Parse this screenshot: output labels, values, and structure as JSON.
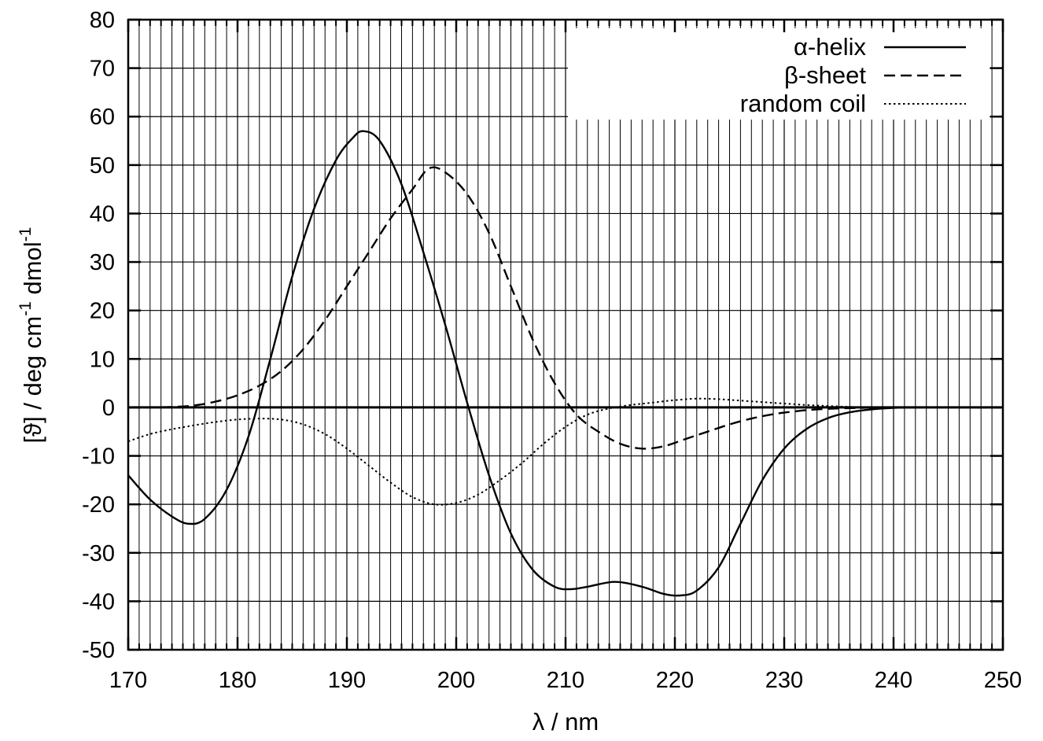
{
  "chart_data": {
    "type": "line",
    "xlabel": "λ / nm",
    "ylabel": "[ϑ] / deg cm",
    "ylabel_sup1": "-1",
    "ylabel_mid": " dmol",
    "ylabel_sup2": "-1",
    "xlim": [
      170,
      250
    ],
    "ylim": [
      -50,
      80
    ],
    "xticks": [
      170,
      180,
      190,
      200,
      210,
      220,
      230,
      240,
      250
    ],
    "yticks": [
      -50,
      -40,
      -30,
      -20,
      -10,
      0,
      10,
      20,
      30,
      40,
      50,
      60,
      70,
      80
    ],
    "grid": true,
    "minor_grid_x_step": 1,
    "legend_position": "top-right",
    "colors": {
      "line": "#000000",
      "grid": "#000000",
      "background": "#ffffff"
    },
    "series": [
      {
        "name": "α-helix",
        "style": "solid",
        "x": [
          170,
          172,
          174,
          175.5,
          177,
          179,
          181,
          183,
          185,
          187,
          189,
          190.5,
          191.5,
          193,
          195,
          197,
          199,
          201,
          203,
          205,
          207,
          209,
          210.5,
          212,
          214.5,
          217,
          219,
          220.5,
          222,
          224,
          226,
          228,
          230,
          232,
          234,
          236,
          238,
          240,
          242,
          250
        ],
        "y": [
          -14,
          -19,
          -22.5,
          -24,
          -23,
          -17,
          -6,
          10,
          27,
          41,
          51,
          55.5,
          57,
          55,
          46,
          32,
          17,
          1,
          -14,
          -26,
          -33.5,
          -37,
          -37.5,
          -37,
          -36,
          -37,
          -38.5,
          -38.8,
          -37.8,
          -33,
          -24,
          -15,
          -8.5,
          -4.5,
          -2.2,
          -1,
          -0.4,
          -0.1,
          0,
          0
        ]
      },
      {
        "name": "β-sheet",
        "style": "dashed",
        "x": [
          170,
          172,
          174,
          176,
          178,
          180,
          182,
          184,
          186,
          188,
          190,
          192,
          194,
          196,
          197.5,
          199,
          201,
          203,
          205,
          207,
          209,
          211,
          213,
          215,
          217,
          219,
          221,
          223,
          225,
          227,
          229,
          231,
          233,
          235,
          237,
          240,
          250
        ],
        "y": [
          0,
          0,
          0.1,
          0.4,
          1.2,
          2.5,
          4.5,
          7.5,
          12,
          18,
          25,
          32,
          39,
          45,
          49.3,
          48.5,
          44,
          36,
          25,
          14,
          5,
          -1.5,
          -5,
          -7.5,
          -8.5,
          -8,
          -6.5,
          -5,
          -3.5,
          -2.3,
          -1.4,
          -0.8,
          -0.4,
          -0.2,
          -0.1,
          0,
          0
        ]
      },
      {
        "name": "random coil",
        "style": "dotted",
        "x": [
          170,
          172,
          174,
          176,
          178,
          180,
          182,
          184,
          186,
          188,
          190,
          192,
          194,
          196,
          198,
          200,
          202,
          204,
          206,
          208,
          210,
          212,
          214,
          216,
          218,
          220,
          222,
          224,
          226,
          228,
          230,
          232,
          234,
          236,
          238,
          240,
          250
        ],
        "y": [
          -7,
          -5.5,
          -4.5,
          -3.7,
          -3,
          -2.5,
          -2.3,
          -2.5,
          -3.5,
          -5.5,
          -8.5,
          -12,
          -15.5,
          -18.5,
          -20,
          -19.7,
          -18,
          -15,
          -11.5,
          -7.5,
          -4,
          -1.5,
          -0.2,
          0.5,
          1,
          1.5,
          1.8,
          1.7,
          1.4,
          1.1,
          0.8,
          0.5,
          0.3,
          0.1,
          0,
          0,
          0
        ]
      }
    ]
  }
}
